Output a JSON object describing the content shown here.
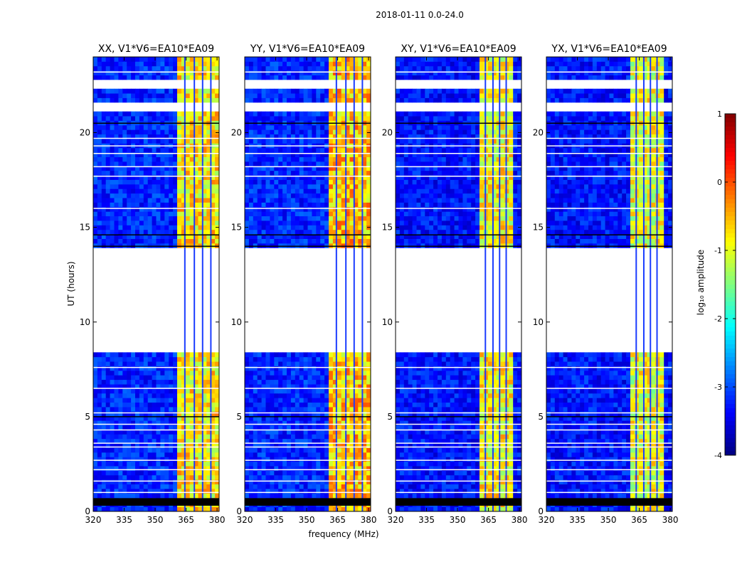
{
  "suptitle": "2018-01-11 0.0-24.0",
  "chart_data": [
    {
      "type": "heatmap",
      "title": "XX, V1*V6=EA10*EA09",
      "xlabel": "frequency (MHz)",
      "ylabel": "UT (hours)",
      "xlim": [
        320,
        381
      ],
      "ylim": [
        0,
        24
      ],
      "xticks": [
        320,
        335,
        350,
        365,
        380
      ],
      "yticks": [
        0,
        5,
        10,
        15,
        20
      ],
      "high_amplitude_band_mhz": [
        360,
        380
      ],
      "data_gaps_hours": [
        [
          8.5,
          13.9
        ],
        [
          21.2,
          21.6
        ],
        [
          22.4,
          22.9
        ]
      ],
      "flagged_rows_hours": [
        [
          0.3,
          0.7
        ]
      ],
      "background_log10_amplitude": -3.2,
      "band_log10_amplitude": -0.8
    },
    {
      "type": "heatmap",
      "title": "YY, V1*V6=EA10*EA09",
      "xlabel": "frequency (MHz)",
      "ylabel": "UT (hours)",
      "xlim": [
        320,
        381
      ],
      "ylim": [
        0,
        24
      ],
      "xticks": [
        320,
        335,
        350,
        365,
        380
      ],
      "yticks": [
        0,
        5,
        10,
        15,
        20
      ],
      "high_amplitude_band_mhz": [
        360,
        380
      ],
      "data_gaps_hours": [
        [
          8.5,
          13.9
        ],
        [
          21.2,
          21.6
        ],
        [
          22.4,
          22.9
        ]
      ],
      "flagged_rows_hours": [
        [
          0.3,
          0.7
        ]
      ],
      "background_log10_amplitude": -3.2,
      "band_log10_amplitude": -0.6
    },
    {
      "type": "heatmap",
      "title": "XY, V1*V6=EA10*EA09",
      "xlabel": "frequency (MHz)",
      "ylabel": "UT (hours)",
      "xlim": [
        320,
        381
      ],
      "ylim": [
        0,
        24
      ],
      "xticks": [
        320,
        335,
        350,
        365,
        380
      ],
      "yticks": [
        0,
        5,
        10,
        15,
        20
      ],
      "high_amplitude_band_mhz": [
        360,
        376
      ],
      "data_gaps_hours": [
        [
          8.5,
          13.9
        ],
        [
          21.2,
          21.6
        ],
        [
          22.4,
          22.9
        ]
      ],
      "flagged_rows_hours": [
        [
          0.3,
          0.7
        ]
      ],
      "background_log10_amplitude": -3.3,
      "band_log10_amplitude": -0.9
    },
    {
      "type": "heatmap",
      "title": "YX, V1*V6=EA10*EA09",
      "xlabel": "frequency (MHz)",
      "ylabel": "UT (hours)",
      "xlim": [
        320,
        381
      ],
      "ylim": [
        0,
        24
      ],
      "xticks": [
        320,
        335,
        350,
        365,
        380
      ],
      "yticks": [
        0,
        5,
        10,
        15,
        20
      ],
      "high_amplitude_band_mhz": [
        360,
        376
      ],
      "data_gaps_hours": [
        [
          8.5,
          13.9
        ],
        [
          21.2,
          21.6
        ],
        [
          22.4,
          22.9
        ]
      ],
      "flagged_rows_hours": [
        [
          0.3,
          0.7
        ]
      ],
      "background_log10_amplitude": -3.3,
      "band_log10_amplitude": -1.0
    }
  ],
  "colorbar": {
    "label": "log₁₀ amplitude",
    "range": [
      -4,
      1
    ],
    "ticks": [
      1,
      0,
      -1,
      -2,
      -3,
      -4
    ],
    "colormap": "jet"
  }
}
